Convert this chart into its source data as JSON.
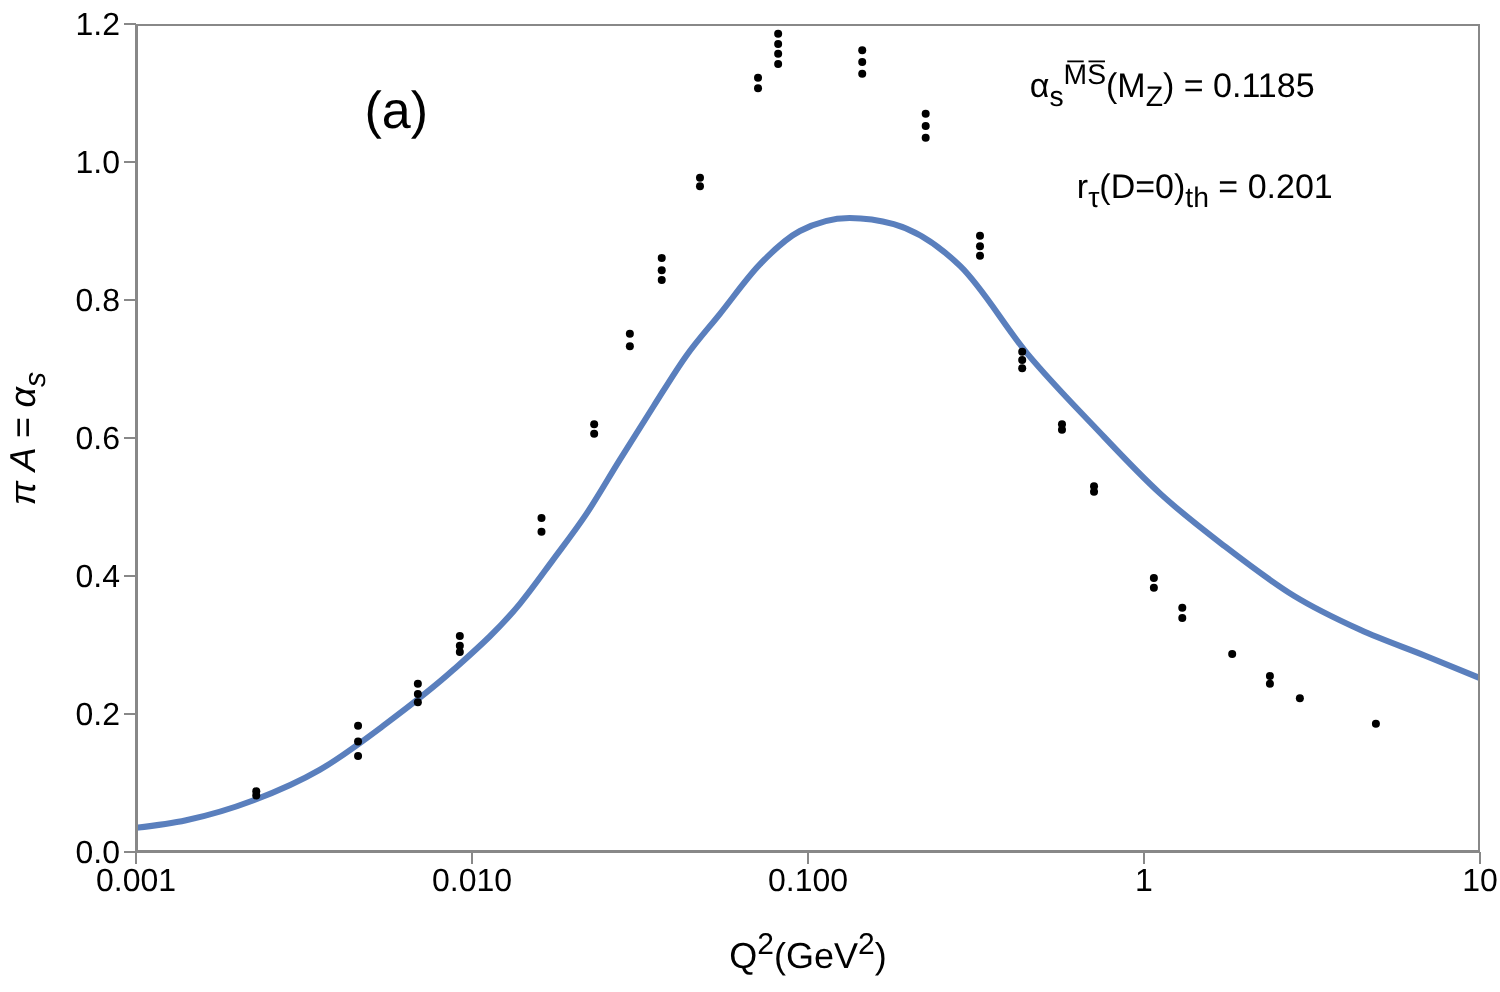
{
  "chart_data": {
    "type": "scatter",
    "xlabel": "Q$^{2}$(GeV$^{2}$)",
    "ylabel": "π A = α$_{s}$",
    "annotations": [
      "(a)",
      "α$_{s}$$^{M̅S̅}$(M$_{Z}$) = 0.1185",
      "r$_{τ}$(D=0)$_{th}$ = 0.201"
    ],
    "log": "x",
    "xlim": [
      0.001,
      10
    ],
    "xticks": [
      0.001,
      {
        "value": 0.01,
        "label": "0.010"
      },
      {
        "value": 0.1,
        "label": "0.100"
      },
      1,
      10
    ],
    "ylim": [
      0,
      1.2
    ],
    "yticks": [
      {
        "value": 0,
        "label": "0.0"
      },
      0.2,
      0.4,
      0.6,
      0.8,
      {
        "value": 1,
        "label": "1.0"
      },
      1.2
    ],
    "series": [
      {
        "marker": "circle",
        "color": "#000000",
        "x": [
          0.00228,
          0.00228,
          0.00458,
          0.00458,
          0.00458,
          0.0069,
          0.0069,
          0.0069,
          0.0092,
          0.0092,
          0.0092,
          0.0161,
          0.0161,
          0.0231,
          0.0231,
          0.0295,
          0.0295,
          0.0367,
          0.0367,
          0.0367,
          0.0477,
          0.0477,
          0.071,
          0.071,
          0.0815,
          0.0815,
          0.0815,
          0.0815,
          0.145,
          0.145,
          0.145,
          0.224,
          0.224,
          0.224,
          0.325,
          0.325,
          0.325,
          0.434,
          0.434,
          0.434,
          0.57,
          0.57,
          0.71,
          0.71,
          1.07,
          1.07,
          1.3,
          1.3,
          1.83,
          2.37,
          2.37,
          2.91,
          4.9
        ],
        "values": [
          0.082,
          0.088,
          0.183,
          0.16,
          0.139,
          0.244,
          0.229,
          0.217,
          0.313,
          0.299,
          0.29,
          0.484,
          0.464,
          0.62,
          0.606,
          0.751,
          0.733,
          0.861,
          0.843,
          0.829,
          0.977,
          0.965,
          1.122,
          1.107,
          1.186,
          1.171,
          1.157,
          1.142,
          1.162,
          1.145,
          1.128,
          1.07,
          1.052,
          1.035,
          0.893,
          0.878,
          0.864,
          0.725,
          0.713,
          0.701,
          0.62,
          0.612,
          0.53,
          0.522,
          0.397,
          0.383,
          0.354,
          0.339,
          0.287,
          0.255,
          0.244,
          0.223,
          0.186
        ]
      },
      {
        "type": "line",
        "marker": "none",
        "color": "#5a7fbd",
        "x": [
          0.001,
          0.00141,
          0.00224,
          0.00352,
          0.00555,
          0.0088,
          0.0139,
          0.0174,
          0.0219,
          0.0275,
          0.0347,
          0.0434,
          0.0547,
          0.072,
          0.0946,
          0.133,
          0.18,
          0.284,
          0.45,
          0.71,
          1.12,
          1.74,
          2.8,
          4.4,
          6.9,
          10
        ],
        "values": [
          0.035,
          0.046,
          0.075,
          0.119,
          0.186,
          0.264,
          0.36,
          0.423,
          0.49,
          0.568,
          0.646,
          0.719,
          0.78,
          0.852,
          0.9,
          0.919,
          0.91,
          0.849,
          0.722,
          0.617,
          0.519,
          0.443,
          0.371,
          0.322,
          0.284,
          0.252
        ]
      }
    ]
  }
}
